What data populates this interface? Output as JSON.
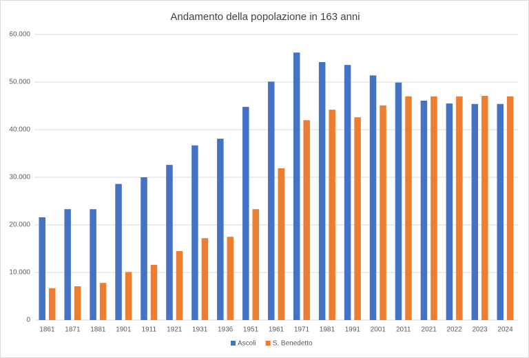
{
  "chart_data": {
    "type": "bar",
    "title": "Andamento della popolazione in 163 anni",
    "categories": [
      "1861",
      "1871",
      "1881",
      "1901",
      "1911",
      "1921",
      "1931",
      "1936",
      "1951",
      "1961",
      "1971",
      "1981",
      "1991",
      "2001",
      "2011",
      "2021",
      "2022",
      "2023",
      "2024"
    ],
    "series": [
      {
        "name": "Ascoli",
        "color": "#4472c4",
        "values": [
          21600,
          23300,
          23300,
          28600,
          30000,
          32600,
          36700,
          38100,
          44800,
          50100,
          56200,
          54200,
          53600,
          51400,
          49900,
          46100,
          45500,
          45400,
          45400
        ]
      },
      {
        "name": "S. Benedetto",
        "color": "#ed7d31",
        "values": [
          6700,
          7100,
          7800,
          10100,
          11600,
          14500,
          17200,
          17500,
          23300,
          31900,
          42000,
          44200,
          42600,
          45100,
          47000,
          47000,
          47000,
          47100,
          47000
        ]
      }
    ],
    "ylim": [
      0,
      60000
    ],
    "yticks": [
      0,
      {
        "value": 10000,
        "label": "10.000"
      },
      {
        "value": 20000,
        "label": "20.000"
      },
      {
        "value": 30000,
        "label": "30.000"
      },
      {
        "value": 40000,
        "label": "40.000"
      },
      {
        "value": 50000,
        "label": "50.000"
      },
      {
        "value": 60000,
        "label": "60.000"
      }
    ],
    "grid": true,
    "legend": "bottom"
  }
}
